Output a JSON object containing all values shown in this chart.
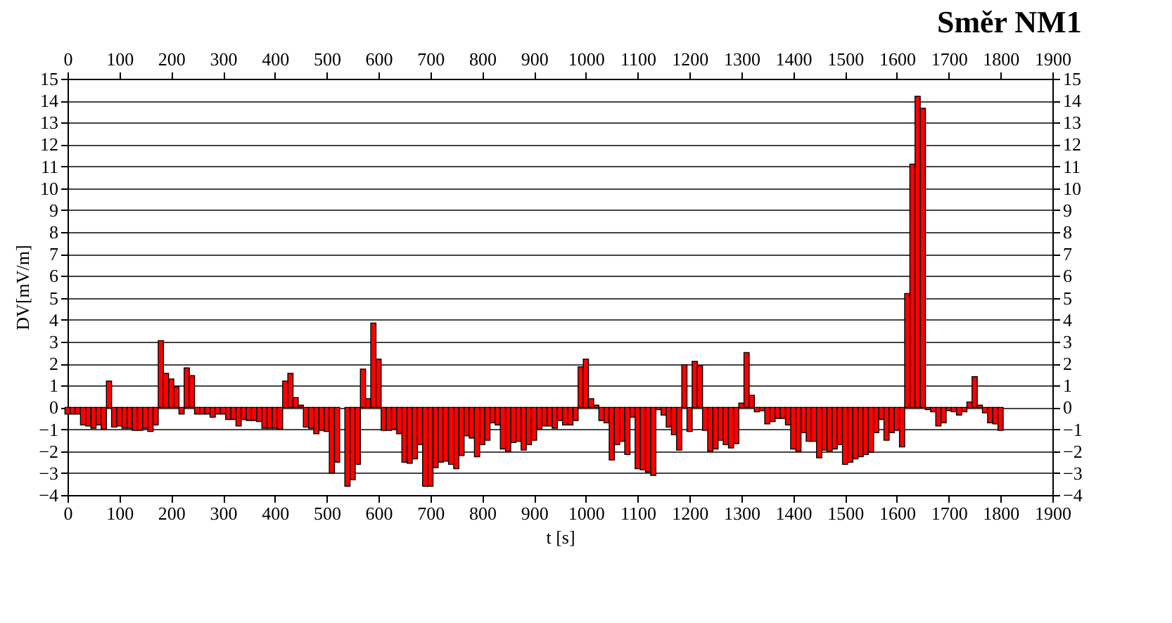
{
  "chart_data": {
    "type": "bar",
    "title": "Směr NM1",
    "xlabel": "t [s]",
    "ylabel": "DV[mV/m]",
    "x": [
      0,
      10,
      20,
      30,
      40,
      50,
      60,
      70,
      80,
      90,
      100,
      110,
      120,
      130,
      140,
      150,
      160,
      170,
      180,
      190,
      200,
      210,
      220,
      230,
      240,
      250,
      260,
      270,
      280,
      290,
      300,
      310,
      320,
      330,
      340,
      350,
      360,
      370,
      380,
      390,
      400,
      410,
      420,
      430,
      440,
      450,
      460,
      470,
      480,
      490,
      500,
      510,
      520,
      530,
      540,
      550,
      560,
      570,
      580,
      590,
      600,
      610,
      620,
      630,
      640,
      650,
      660,
      670,
      680,
      690,
      700,
      710,
      720,
      730,
      740,
      750,
      760,
      770,
      780,
      790,
      800,
      810,
      820,
      830,
      840,
      850,
      860,
      870,
      880,
      890,
      900,
      910,
      920,
      930,
      940,
      950,
      960,
      970,
      980,
      990,
      1000,
      1010,
      1020,
      1030,
      1040,
      1050,
      1060,
      1070,
      1080,
      1090,
      1100,
      1110,
      1120,
      1130,
      1140,
      1150,
      1160,
      1170,
      1180,
      1190,
      1200,
      1210,
      1220,
      1230,
      1240,
      1250,
      1260,
      1270,
      1280,
      1290,
      1300,
      1310,
      1320,
      1330,
      1340,
      1350,
      1360,
      1370,
      1380,
      1390,
      1400,
      1410,
      1420,
      1430,
      1440,
      1450,
      1460,
      1470,
      1480,
      1490,
      1500,
      1510,
      1520,
      1530,
      1540,
      1550,
      1560,
      1570,
      1580,
      1590,
      1600,
      1610,
      1620,
      1630,
      1640,
      1650,
      1660,
      1670,
      1680,
      1690,
      1700,
      1710,
      1720,
      1730,
      1740,
      1750,
      1760,
      1770,
      1780,
      1790,
      1800
    ],
    "values": [
      -0.3,
      -0.3,
      -0.3,
      -0.8,
      -0.85,
      -0.95,
      -0.8,
      -1.0,
      1.2,
      -0.9,
      -0.85,
      -0.95,
      -0.95,
      -1.05,
      -1.05,
      -0.95,
      -1.1,
      -0.8,
      3.05,
      1.55,
      1.3,
      0.95,
      -0.3,
      1.8,
      1.45,
      -0.3,
      -0.3,
      -0.3,
      -0.45,
      -0.3,
      -0.3,
      -0.55,
      -0.55,
      -0.85,
      -0.55,
      -0.6,
      -0.6,
      -0.65,
      -0.95,
      -0.95,
      -0.95,
      -1.0,
      1.2,
      1.55,
      0.45,
      0.1,
      -0.9,
      -0.95,
      -1.2,
      -1.05,
      -1.1,
      -3.0,
      -2.5,
      null,
      -3.6,
      -3.3,
      -2.6,
      1.75,
      0.4,
      3.85,
      2.2,
      -1.05,
      -1.05,
      -1.0,
      -1.2,
      -2.5,
      -2.55,
      -2.35,
      -1.7,
      -3.6,
      -3.6,
      -2.75,
      -2.5,
      -2.45,
      -2.6,
      -2.8,
      -2.2,
      -1.3,
      -1.4,
      -2.25,
      -1.7,
      -1.5,
      -0.7,
      -0.8,
      -1.9,
      -2.0,
      -1.6,
      -1.55,
      -1.95,
      -1.7,
      -1.5,
      -1.0,
      -0.85,
      -0.85,
      -0.95,
      -0.6,
      -0.8,
      -0.8,
      -0.6,
      1.85,
      2.2,
      0.4,
      0.1,
      -0.6,
      -0.7,
      -2.4,
      -1.7,
      -1.55,
      -2.15,
      -0.45,
      -2.8,
      -2.85,
      -2.95,
      -3.1,
      -0.1,
      -0.35,
      -0.9,
      -1.25,
      -1.95,
      1.95,
      -1.1,
      2.1,
      1.9,
      -1.05,
      -2.0,
      -1.9,
      -1.5,
      -1.7,
      -1.85,
      -1.65,
      0.2,
      2.5,
      0.55,
      -0.2,
      -0.15,
      -0.75,
      -0.65,
      -0.5,
      -0.5,
      -0.8,
      -1.9,
      -2.0,
      -1.15,
      -1.55,
      -1.55,
      -2.3,
      -1.95,
      -2.0,
      -1.9,
      -1.7,
      -2.6,
      -2.5,
      -2.35,
      -2.25,
      -2.15,
      -2.05,
      -1.15,
      -0.55,
      -1.5,
      -1.15,
      -1.05,
      -1.8,
      5.2,
      11.1,
      14.2,
      13.65,
      -0.1,
      -0.2,
      -0.85,
      -0.7,
      -0.15,
      -0.2,
      -0.35,
      -0.2,
      0.25,
      1.4,
      0.1,
      -0.25,
      -0.7,
      -0.75,
      -1.05
    ],
    "color": "#ff0000",
    "xlim": [
      0,
      1900
    ],
    "xticks": [
      0,
      100,
      200,
      300,
      400,
      500,
      600,
      700,
      800,
      900,
      1000,
      1100,
      1200,
      1300,
      1400,
      1500,
      1600,
      1700,
      1800,
      1900
    ],
    "x2lim": [
      0,
      1900
    ],
    "x2ticks": [
      0,
      100,
      200,
      300,
      400,
      500,
      600,
      700,
      800,
      900,
      1000,
      1100,
      1200,
      1300,
      1400,
      1500,
      1600,
      1700,
      1800,
      1900
    ],
    "ylim": [
      -4,
      15
    ],
    "yticks": [
      -4,
      -3,
      -2,
      -1,
      0,
      1,
      2,
      3,
      4,
      5,
      6,
      7,
      8,
      9,
      10,
      11,
      12,
      13,
      14,
      15
    ],
    "y2lim": [
      -4,
      15
    ],
    "y2ticks": [
      -4,
      -3,
      -2,
      -1,
      0,
      1,
      2,
      3,
      4,
      5,
      6,
      7,
      8,
      9,
      10,
      11,
      12,
      13,
      14,
      15
    ],
    "grid": "y"
  }
}
